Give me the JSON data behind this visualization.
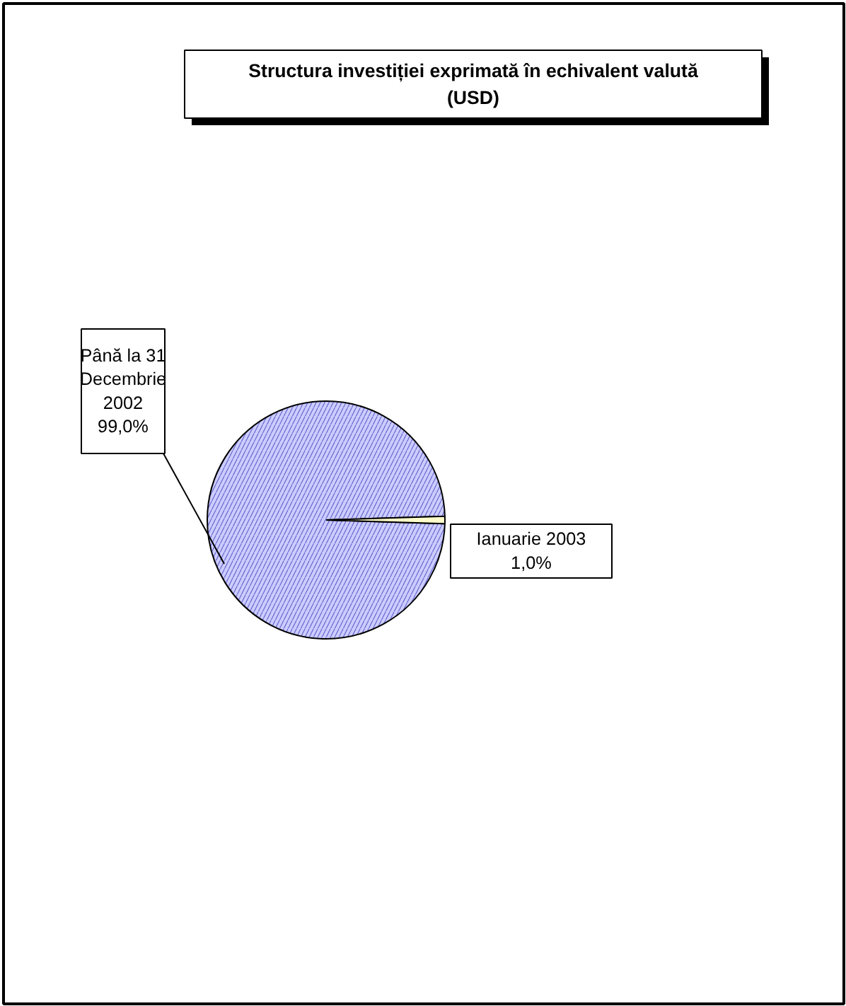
{
  "chart_data": {
    "type": "pie",
    "title": "Structura investiției exprimată în echivalent valută\n(USD)",
    "categories": [
      "Până la 31\nDecembrie\n2002",
      "Ianuarie 2003"
    ],
    "values": [
      99.0,
      1.0
    ],
    "colors": [
      "#ccccff",
      "#ffffcc"
    ],
    "value_labels": [
      "99,0%",
      "1,0%"
    ]
  }
}
